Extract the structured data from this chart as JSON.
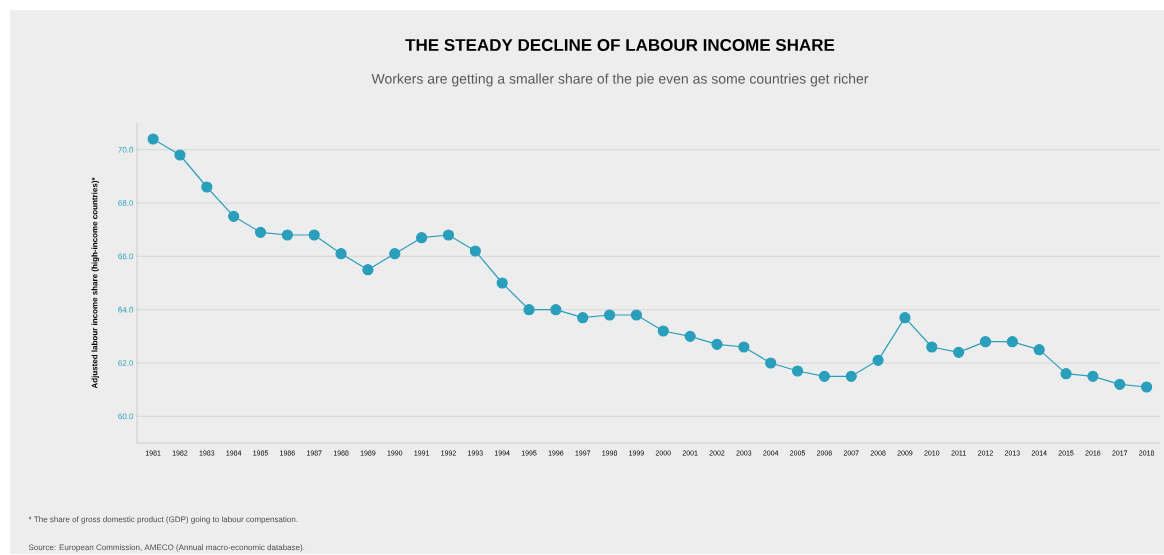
{
  "chart_data": {
    "type": "line",
    "title": "THE STEADY DECLINE OF LABOUR INCOME SHARE",
    "subtitle": "Workers are getting a smaller share of the pie even as some countries get richer",
    "ylabel": "Adjusted labour income share (high-income countries)*",
    "categories": [
      "1981",
      "1982",
      "1983",
      "1984",
      "1985",
      "1986",
      "1987",
      "1988",
      "1989",
      "1990",
      "1991",
      "1992",
      "1993",
      "1994",
      "1995",
      "1996",
      "1997",
      "1998",
      "1999",
      "2000",
      "2001",
      "2002",
      "2003",
      "2004",
      "2005",
      "2006",
      "2007",
      "2008",
      "2009",
      "2010",
      "2011",
      "2012",
      "2013",
      "2014",
      "2015",
      "2016",
      "2017",
      "2018"
    ],
    "values": [
      70.4,
      69.8,
      68.6,
      67.5,
      66.9,
      66.8,
      66.8,
      66.1,
      65.5,
      66.1,
      66.7,
      66.8,
      66.2,
      65.0,
      64.0,
      64.0,
      63.7,
      63.8,
      63.8,
      63.2,
      63.0,
      62.7,
      62.6,
      62.0,
      61.7,
      61.5,
      61.5,
      62.1,
      63.7,
      62.6,
      62.4,
      62.8,
      62.8,
      62.5,
      61.6,
      61.5,
      61.2,
      61.1
    ],
    "color": "#2a9fbc",
    "ylim": [
      59,
      71
    ],
    "yticks": [
      {
        "value": 60,
        "label": "60.0"
      },
      {
        "value": 62,
        "label": "62.0"
      },
      {
        "value": 64,
        "label": "64.0"
      },
      {
        "value": 66,
        "label": "66.0"
      },
      {
        "value": 68,
        "label": "68.0"
      },
      {
        "value": 70,
        "label": "70.0"
      }
    ],
    "grid": "y",
    "marker": "circle",
    "line_style": "solid",
    "annotations": [
      "* The share of gross domestic product (GDP) going to labour compensation.",
      "Source: European Commission, AMECO (Annual macro-economic database)."
    ]
  }
}
